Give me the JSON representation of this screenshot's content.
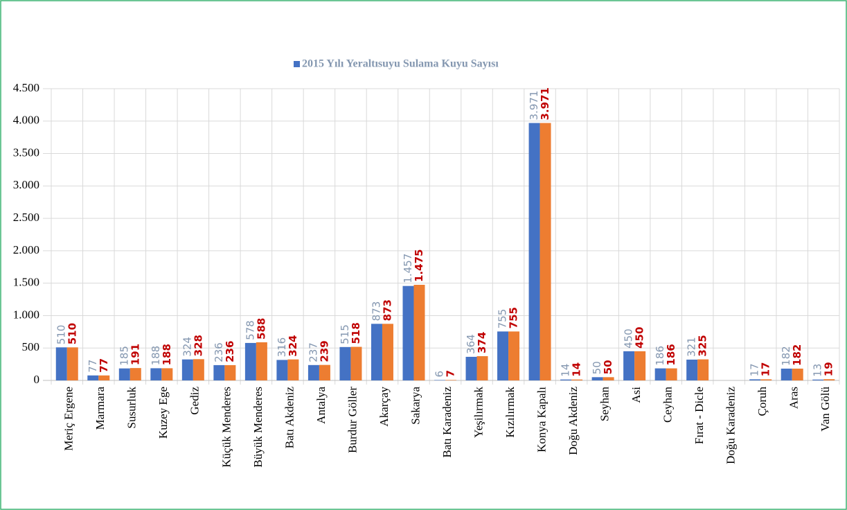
{
  "chart_data": {
    "type": "bar",
    "categories": [
      "Meriç Ergene",
      "Marmara",
      "Susurluk",
      "Kuzey Ege",
      "Gediz",
      "Küçük Menderes",
      "Büyük Menderes",
      "Batı Akdeniz",
      "Antalya",
      "Burdur Göller",
      "Akarçay",
      "Sakarya",
      "Batı Karadeniz",
      "Yeşilırmak",
      "Kızılırmak",
      "Konya Kapalı",
      "Doğu Akdeniz",
      "Seyhan",
      "Asi",
      "Ceyhan",
      "Fırat - Dicle",
      "Doğu Karadeniz",
      "Çoruh",
      "Aras",
      "Van Gölü"
    ],
    "series": [
      {
        "name": "2015 Yılı Yeraltısuyu Sulama Kuyu Sayısı",
        "color": "#4472c4",
        "label_color": "#8497b0",
        "values": [
          510,
          77,
          185,
          188,
          324,
          236,
          578,
          316,
          237,
          515,
          873,
          1457,
          6,
          364,
          755,
          3971,
          14,
          50,
          450,
          186,
          321,
          null,
          17,
          182,
          13
        ],
        "value_labels": [
          "510",
          "77",
          "185",
          "188",
          "324",
          "236",
          "578",
          "316",
          "237",
          "515",
          "873",
          "1.457",
          "6",
          "364",
          "755",
          "3.971",
          "14",
          "50",
          "450",
          "186",
          "321",
          null,
          "17",
          "182",
          "13"
        ]
      },
      {
        "color": "#ed7d31",
        "label_color": "#c00000",
        "values": [
          510,
          77,
          191,
          188,
          328,
          236,
          588,
          324,
          239,
          518,
          873,
          1475,
          7,
          374,
          755,
          3971,
          14,
          50,
          450,
          186,
          325,
          null,
          17,
          182,
          19
        ],
        "value_labels": [
          "510",
          "77",
          "191",
          "188",
          "328",
          "236",
          "588",
          "324",
          "239",
          "518",
          "873",
          "1.475",
          "7",
          "374",
          "755",
          "3.971",
          "14",
          "50",
          "450",
          "186",
          "325",
          null,
          "17",
          "182",
          "19"
        ]
      }
    ],
    "ylim": [
      0,
      4500
    ],
    "yticks": [
      0,
      500,
      {
        "value": 1000,
        "label": "1.000"
      },
      {
        "value": 1500,
        "label": "1.500"
      },
      {
        "value": 2000,
        "label": "2.000"
      },
      {
        "value": 2500,
        "label": "2.500"
      },
      {
        "value": 3000,
        "label": "3.000"
      },
      {
        "value": 3500,
        "label": "3.500"
      },
      {
        "value": 4000,
        "label": "4.000"
      },
      {
        "value": 4500,
        "label": "4.500"
      }
    ],
    "grid": true
  }
}
